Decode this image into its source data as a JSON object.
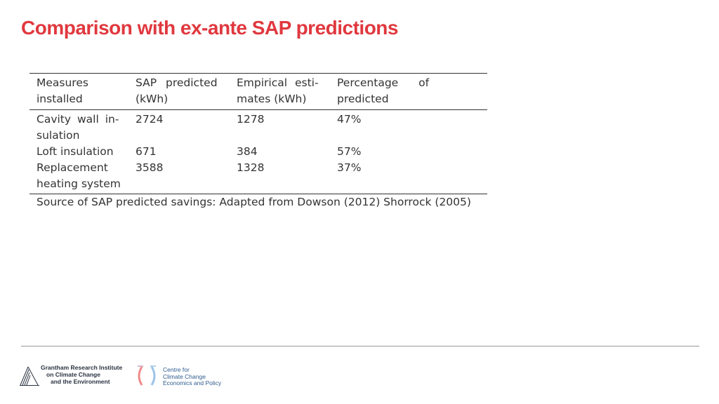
{
  "slide": {
    "title": "Comparison with ex-ante SAP predictions"
  },
  "table": {
    "headers": [
      [
        "Measures",
        "installed"
      ],
      [
        "SAP predicted",
        "(kWh)"
      ],
      [
        "Empirical esti-",
        "mates (kWh)"
      ],
      [
        "Percentage of",
        "predicted"
      ]
    ],
    "rows": [
      {
        "measure": [
          "Cavity wall in-",
          "sulation"
        ],
        "sap": "2724",
        "empirical": "1278",
        "percentage": "47%"
      },
      {
        "measure": [
          "Loft insulation"
        ],
        "sap": "671",
        "empirical": "384",
        "percentage": "57%"
      },
      {
        "measure": [
          "Replacement",
          "heating system"
        ],
        "sap": "3588",
        "empirical": "1328",
        "percentage": "37%"
      }
    ],
    "source": "Source of SAP predicted savings: Adapted from Dowson (2012) Shorrock (2005)"
  },
  "footer": {
    "logo1": [
      "Grantham Research Institute",
      "on Climate Change",
      "and the Environment"
    ],
    "logo2": [
      "Centre for",
      "Climate Change",
      "Economics and Policy"
    ]
  }
}
